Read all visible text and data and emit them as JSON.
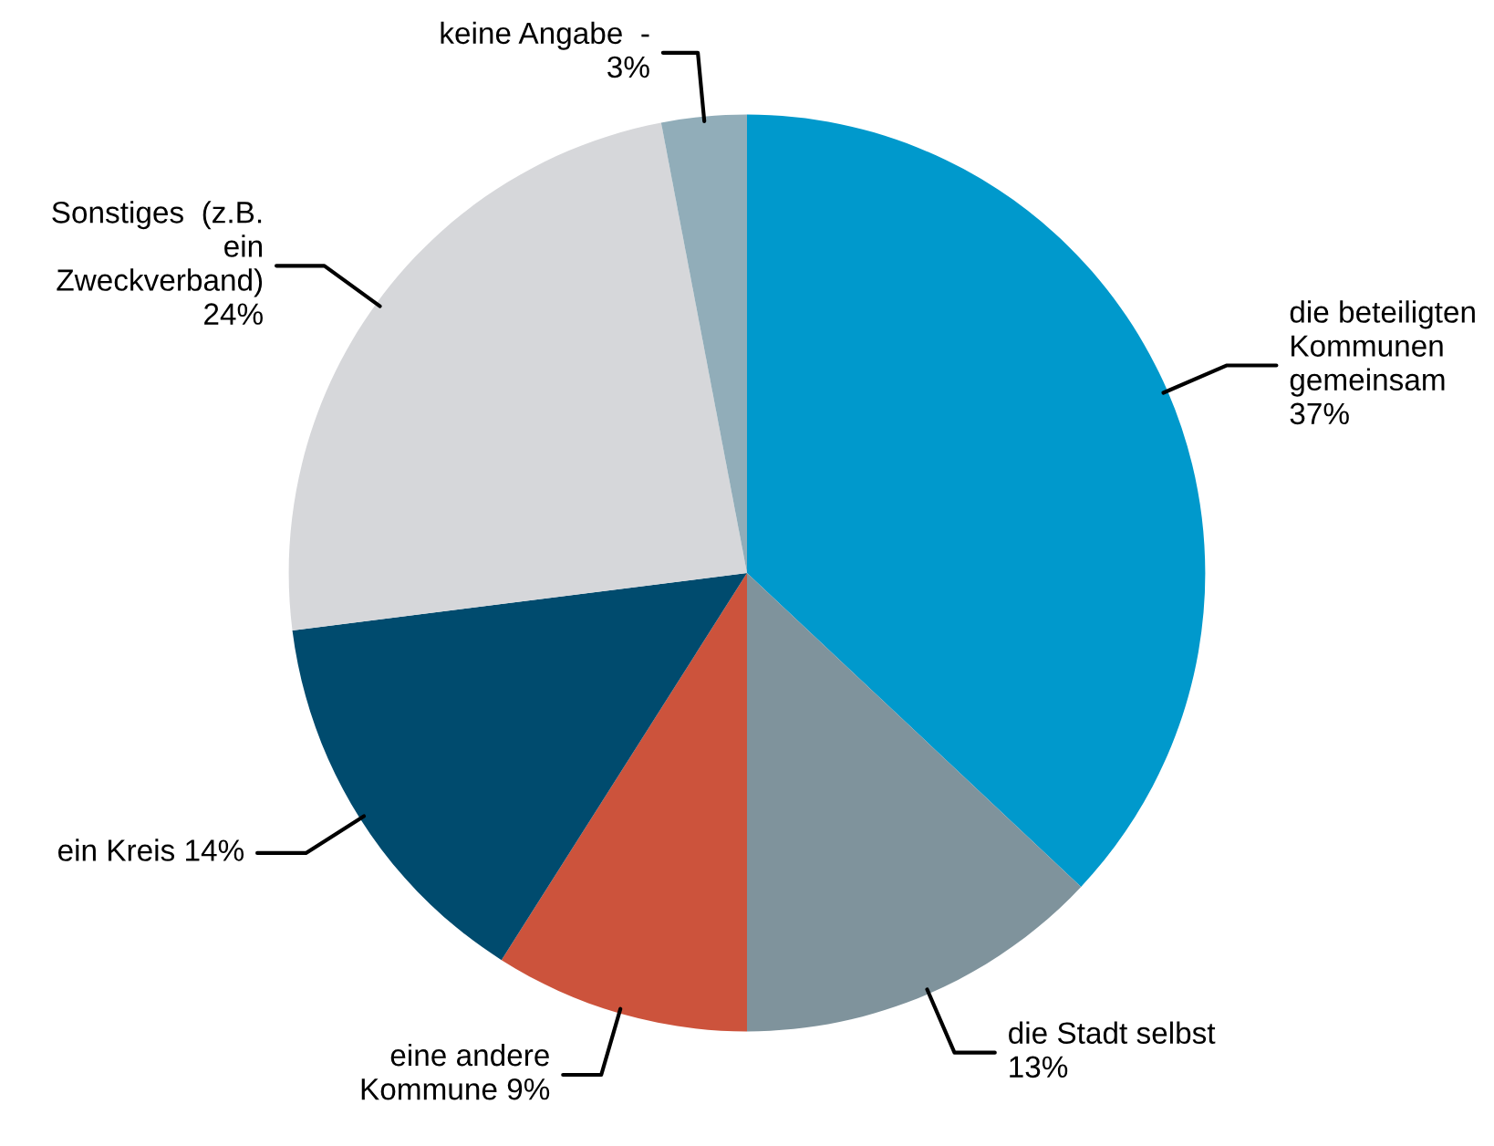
{
  "chart_data": {
    "type": "pie",
    "categories": [
      "die beteiligten\nKommunen\ngemeinsam",
      "die Stadt selbst",
      "eine andere\nKommune ",
      "ein Kreis",
      "Sonstiges  (z.B.\nein\nZweckverband)",
      "keine Angabe  -"
    ],
    "values": [
      37,
      13,
      9,
      14,
      24,
      3
    ],
    "value_labels": [
      "37%",
      "13%",
      "9%",
      "14%",
      "24%",
      "3%"
    ],
    "colors": [
      "#0099cc",
      "#7f939c",
      "#cc533c",
      "#004b6e",
      "#d6d7da",
      "#91adb9"
    ]
  }
}
